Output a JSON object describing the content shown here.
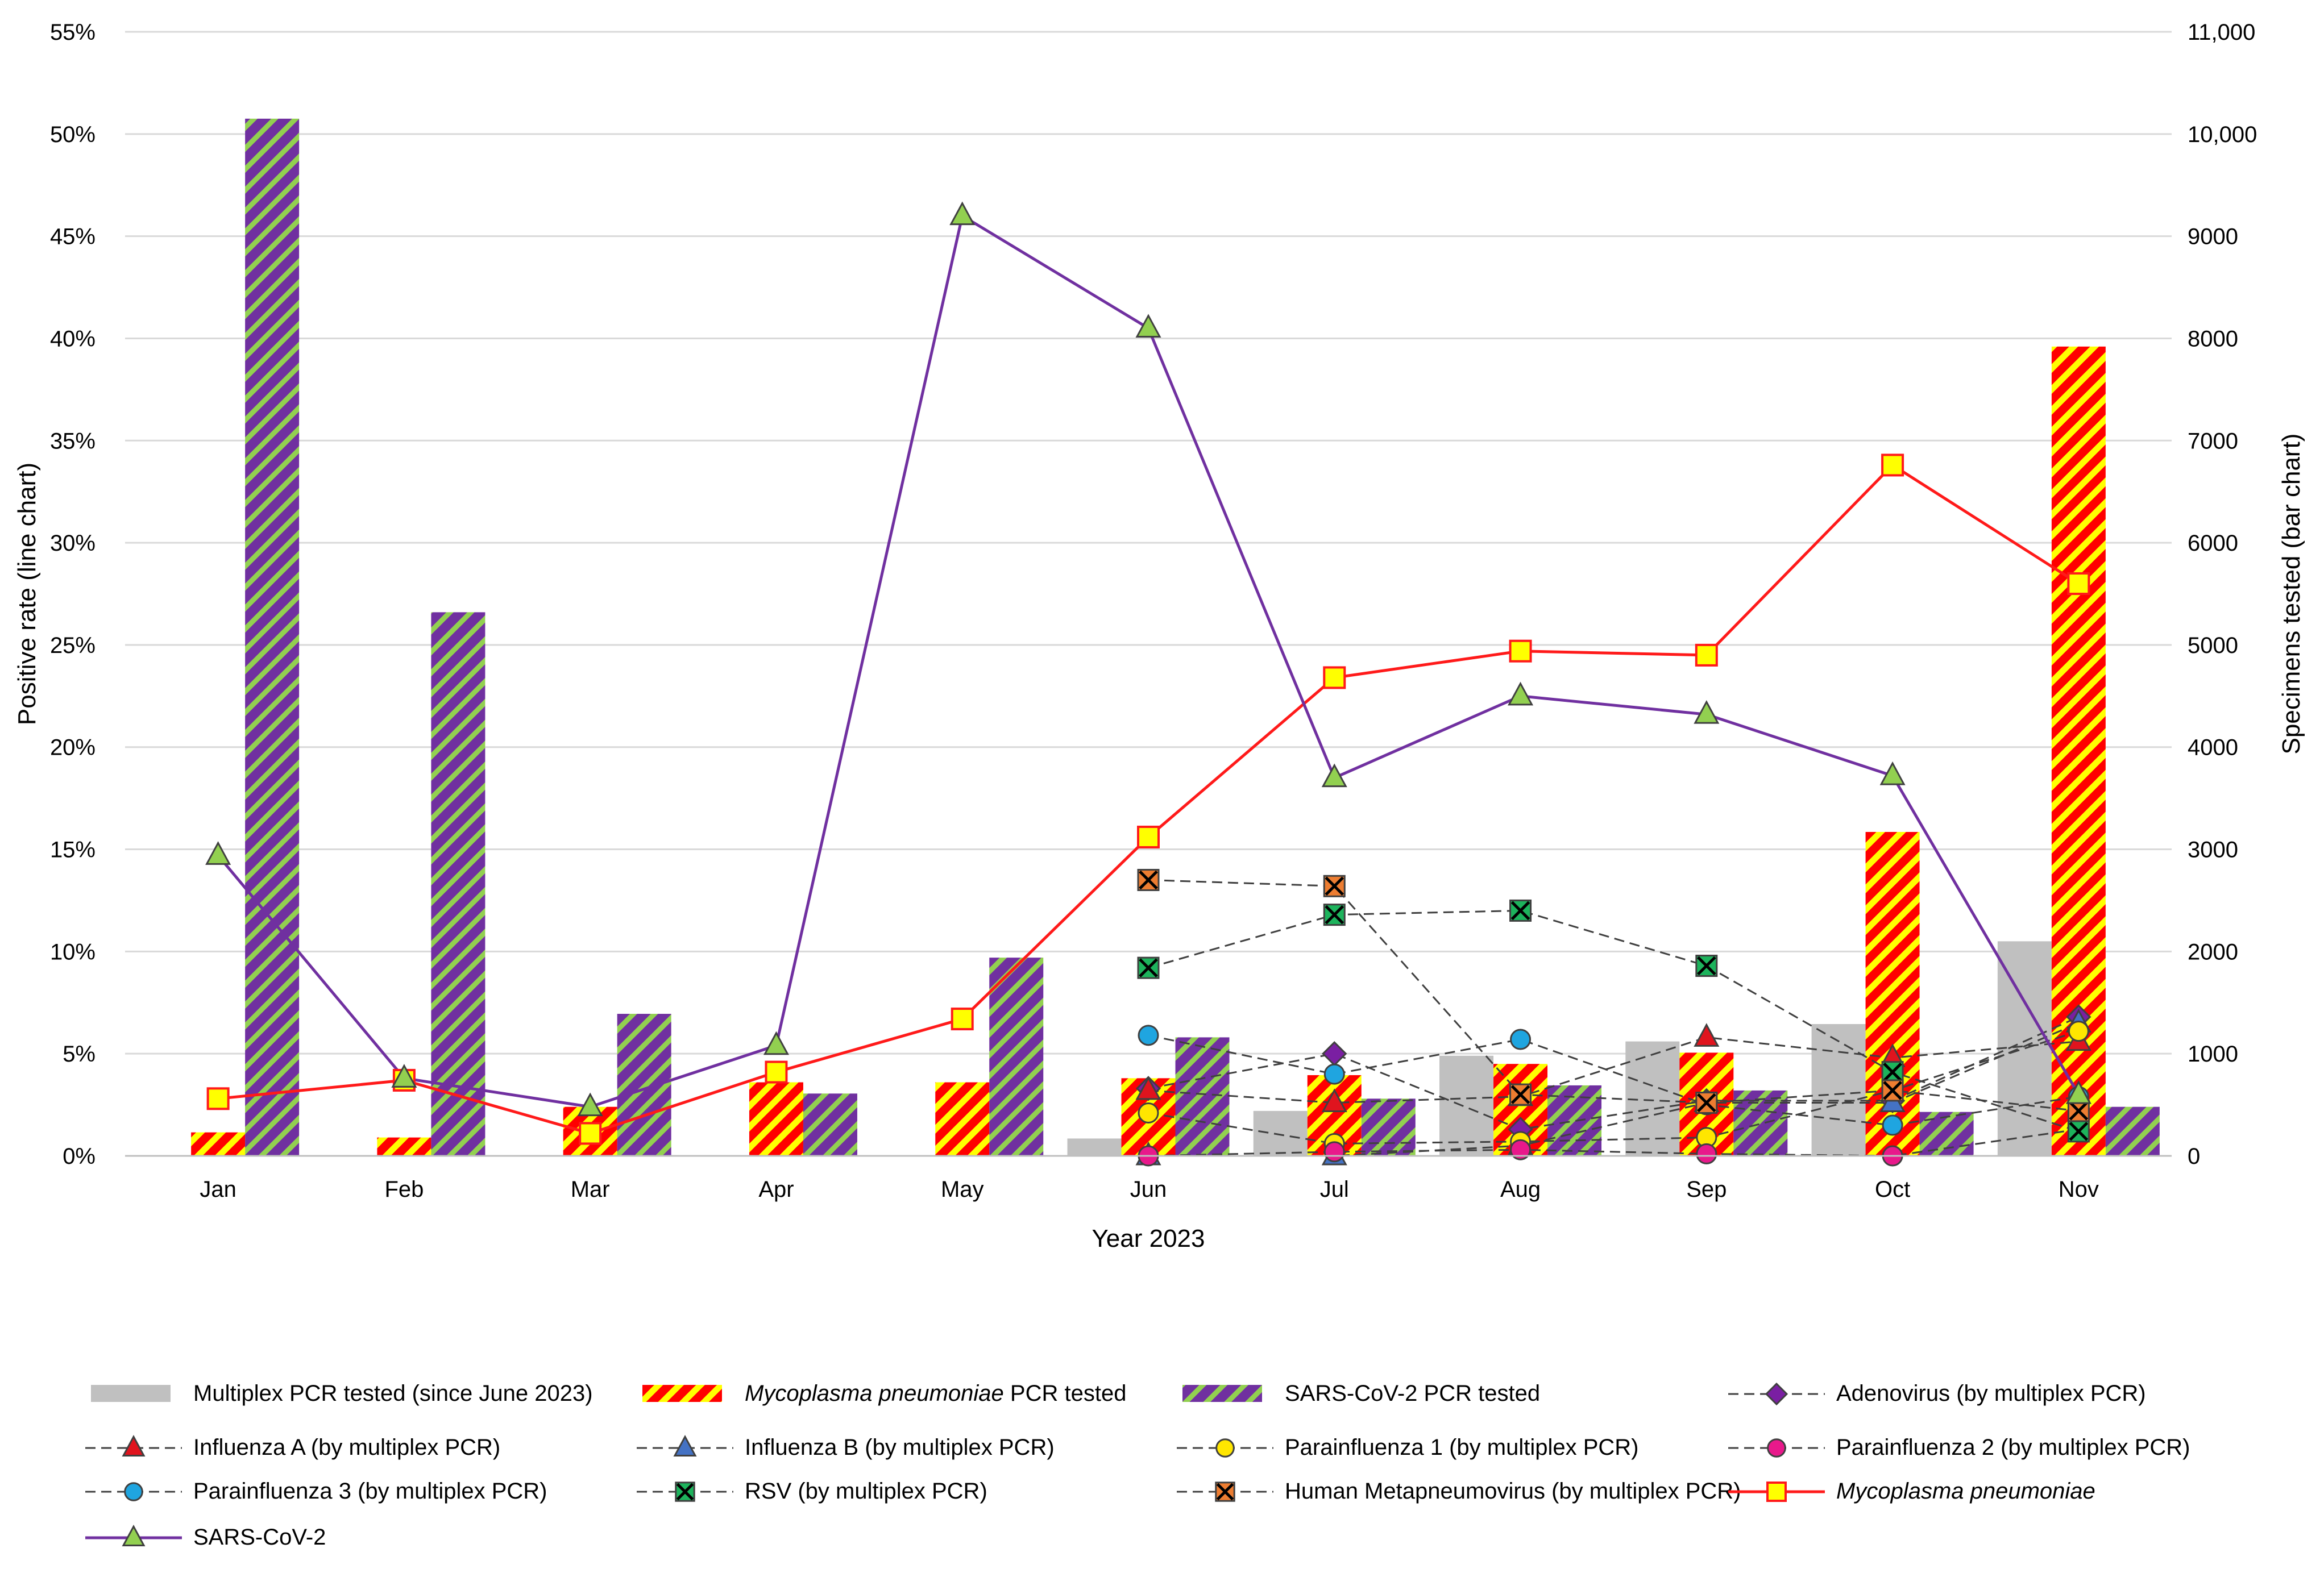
{
  "chart_data": {
    "type": "bar+line",
    "title": "",
    "xlabel": "Year 2023",
    "ylabel_left": "Positive rate (line chart)",
    "ylabel_right": "Specimens tested (bar chart)",
    "categories": [
      "Jan",
      "Feb",
      "Mar",
      "Apr",
      "May",
      "Jun",
      "Jul",
      "Aug",
      "Sep",
      "Oct",
      "Nov"
    ],
    "left_axis": {
      "ylim": [
        0,
        55
      ],
      "ticks": [
        0,
        5,
        10,
        15,
        20,
        25,
        30,
        35,
        40,
        45,
        50,
        55
      ],
      "tick_labels": [
        "0%",
        "5%",
        "10%",
        "15%",
        "20%",
        "25%",
        "30%",
        "35%",
        "40%",
        "45%",
        "50%",
        "55%"
      ]
    },
    "right_axis": {
      "ylim": [
        0,
        11000
      ],
      "ticks": [
        0,
        1000,
        2000,
        3000,
        4000,
        5000,
        6000,
        7000,
        8000,
        9000,
        10000,
        11000
      ],
      "tick_labels": [
        "0",
        "1000",
        "2000",
        "3000",
        "4000",
        "5000",
        "6000",
        "7000",
        "8000",
        "9000",
        "10,000",
        "11,000"
      ]
    },
    "bar_series": [
      {
        "name": "Multiplex PCR tested (since June 2023)",
        "style": "gray",
        "values": [
          null,
          null,
          null,
          null,
          null,
          170,
          440,
          980,
          1120,
          1290,
          2100
        ]
      },
      {
        "name": "PCR tested",
        "name_italic": "Mycoplasma pneumoniae",
        "style": "red-yellow",
        "values": [
          230,
          180,
          480,
          720,
          720,
          760,
          790,
          900,
          1010,
          3170,
          7920
        ]
      },
      {
        "name": "SARS-CoV-2 PCR tested",
        "style": "purple-green",
        "values": [
          10150,
          5320,
          1390,
          610,
          1940,
          1160,
          560,
          690,
          640,
          430,
          480
        ]
      }
    ],
    "line_series": [
      {
        "name": "Adenovirus (by multiplex PCR)",
        "color": "#7a1fa2",
        "marker": "diamond",
        "dashed": true,
        "values": [
          null,
          null,
          null,
          null,
          null,
          3.3,
          5.0,
          1.3,
          2.7,
          2.7,
          6.8
        ]
      },
      {
        "name": "Influenza A (by multiplex PCR)",
        "color": "#e0141e",
        "marker": "triangle",
        "dashed": true,
        "values": [
          null,
          null,
          null,
          null,
          null,
          3.2,
          2.6,
          2.9,
          5.8,
          4.8,
          5.6
        ]
      },
      {
        "name": "Influenza B (by multiplex PCR)",
        "color": "#4472c4",
        "marker": "triangle",
        "dashed": true,
        "values": [
          null,
          null,
          null,
          null,
          null,
          0.0,
          0.0,
          0.5,
          2.6,
          2.6,
          6.5
        ]
      },
      {
        "name": "Parainfluenza 1 (by multiplex PCR)",
        "color": "#ffe600",
        "marker": "circle",
        "dashed": true,
        "values": [
          null,
          null,
          null,
          null,
          null,
          2.1,
          0.6,
          0.7,
          0.9,
          3.2,
          6.1
        ]
      },
      {
        "name": "Parainfluenza 2 (by multiplex PCR)",
        "color": "#e8198b",
        "marker": "circle",
        "dashed": true,
        "values": [
          null,
          null,
          null,
          null,
          null,
          0.0,
          0.2,
          0.3,
          0.1,
          0.0,
          1.3
        ]
      },
      {
        "name": "Parainfluenza 3 (by multiplex PCR)",
        "color": "#1fa5e0",
        "marker": "circle",
        "dashed": true,
        "values": [
          null,
          null,
          null,
          null,
          null,
          5.9,
          4.0,
          5.7,
          2.5,
          1.5,
          2.9
        ]
      },
      {
        "name": "RSV (by multiplex PCR)",
        "color": "#1db35c",
        "marker": "x-square",
        "dashed": true,
        "values": [
          null,
          null,
          null,
          null,
          null,
          9.2,
          11.8,
          12.0,
          9.3,
          4.1,
          1.2
        ]
      },
      {
        "name": "Human Metapneumovirus (by multiplex PCR)",
        "color": "#ed7d31",
        "marker": "x-square",
        "dashed": true,
        "values": [
          null,
          null,
          null,
          null,
          null,
          13.5,
          13.2,
          3.0,
          2.6,
          3.2,
          2.2
        ]
      },
      {
        "name": "",
        "name_italic": "Mycoplasma pneumoniae",
        "color": "#ff1a1a",
        "marker": "square",
        "dashed": false,
        "values": [
          2.8,
          3.7,
          1.1,
          4.1,
          6.7,
          15.6,
          23.4,
          24.7,
          24.5,
          33.8,
          28.0
        ]
      },
      {
        "name": "SARS-CoV-2",
        "color": "#7030a0",
        "marker": "triangle",
        "dashed": false,
        "values": [
          14.7,
          3.8,
          2.4,
          5.4,
          46.0,
          40.5,
          18.5,
          22.5,
          21.6,
          18.6,
          3.0
        ]
      }
    ],
    "legend": {
      "placement": "bottom",
      "entries": [
        {
          "text": "Multiplex PCR tested (since June 2023)",
          "italic": "",
          "kind": "bar",
          "series": "bar_series.0"
        },
        {
          "text": " PCR tested",
          "italic": "Mycoplasma pneumoniae",
          "kind": "bar",
          "series": "bar_series.1"
        },
        {
          "text": "SARS-CoV-2 PCR tested",
          "italic": "",
          "kind": "bar",
          "series": "bar_series.2"
        },
        {
          "text": "Adenovirus (by multiplex PCR)",
          "italic": "",
          "kind": "line",
          "series": "line_series.0"
        },
        {
          "text": "Influenza A (by multiplex PCR)",
          "italic": "",
          "kind": "line",
          "series": "line_series.1"
        },
        {
          "text": "Influenza B (by multiplex PCR)",
          "italic": "",
          "kind": "line",
          "series": "line_series.2"
        },
        {
          "text": "Parainfluenza 1 (by multiplex PCR)",
          "italic": "",
          "kind": "line",
          "series": "line_series.3"
        },
        {
          "text": "Parainfluenza 2 (by multiplex PCR)",
          "italic": "",
          "kind": "line",
          "series": "line_series.4"
        },
        {
          "text": "Parainfluenza 3 (by multiplex PCR)",
          "italic": "",
          "kind": "line",
          "series": "line_series.5"
        },
        {
          "text": "RSV (by multiplex PCR)",
          "italic": "",
          "kind": "line",
          "series": "line_series.6"
        },
        {
          "text": "Human Metapneumovirus (by multiplex PCR)",
          "italic": "",
          "kind": "line",
          "series": "line_series.7"
        },
        {
          "text": "",
          "italic": "Mycoplasma pneumoniae",
          "kind": "line",
          "series": "line_series.8"
        },
        {
          "text": "SARS-CoV-2",
          "italic": "",
          "kind": "line",
          "series": "line_series.9"
        }
      ]
    },
    "colors": {
      "grid": "#d9d9d9",
      "gray_bar": "#c0c0c0",
      "hatch_red": "#ff0000",
      "hatch_yellow": "#ffff00",
      "hatch_purple": "#7030a0",
      "hatch_green": "#92d050",
      "dash_line": "#404040",
      "marker_green": "#92d050"
    }
  }
}
